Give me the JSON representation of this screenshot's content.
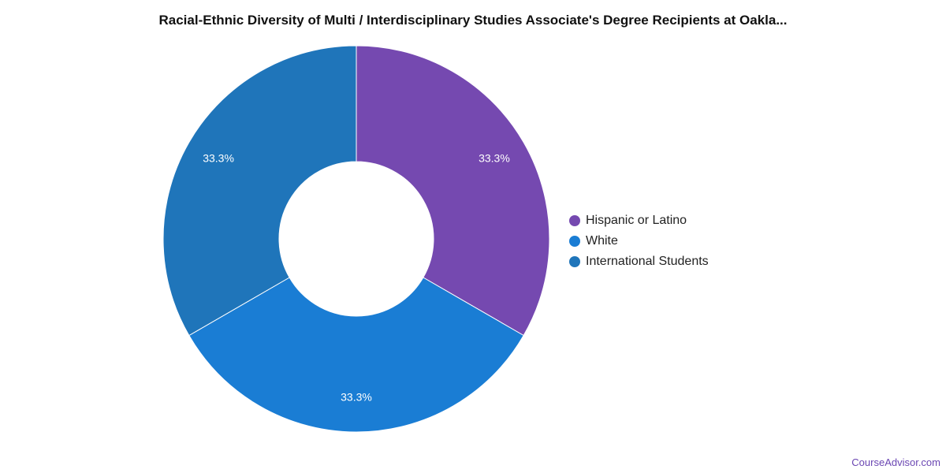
{
  "chart_data": {
    "type": "pie",
    "title": "Racial-Ethnic Diversity of Multi / Interdisciplinary Studies Associate's Degree Recipients at Oakla...",
    "donut": true,
    "legend_position": "right",
    "slices": [
      {
        "label": "Hispanic or Latino",
        "value": 33.3,
        "display": "33.3%",
        "color": "#7549b0"
      },
      {
        "label": "White",
        "value": 33.3,
        "display": "33.3%",
        "color": "#1a7dd4"
      },
      {
        "label": "International Students",
        "value": 33.3,
        "display": "33.3%",
        "color": "#1f75ba"
      }
    ]
  },
  "watermark": "CourseAdvisor.com"
}
